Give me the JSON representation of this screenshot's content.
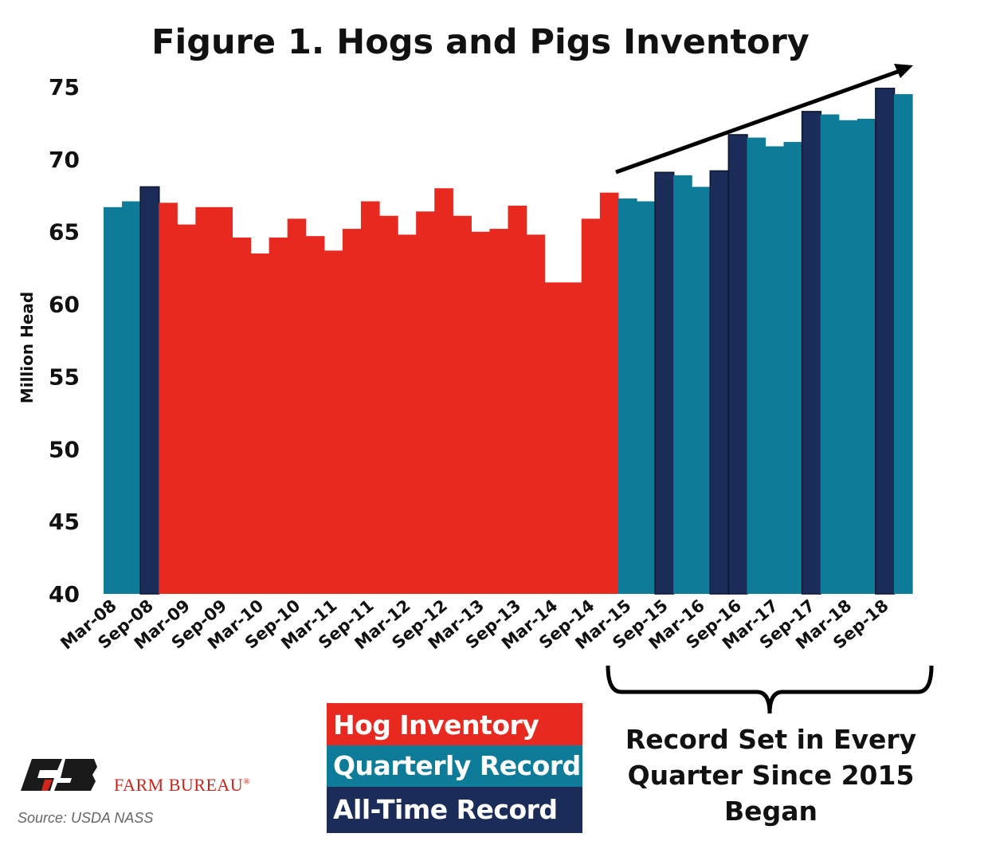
{
  "chart_data": {
    "type": "bar",
    "title": "Figure 1. Hogs and Pigs Inventory",
    "ylabel": "Million Head",
    "xlabel": "",
    "ylim": [
      40,
      75
    ],
    "y_ticks": [
      "40",
      "45",
      "50",
      "55",
      "60",
      "65",
      "70",
      "75"
    ],
    "x_tick_labels": [
      "Mar-08",
      "Sep-08",
      "Mar-09",
      "Sep-09",
      "Mar-10",
      "Sep-10",
      "Mar-11",
      "Sep-11",
      "Mar-12",
      "Sep-12",
      "Mar-13",
      "Sep-13",
      "Mar-14",
      "Sep-14",
      "Mar-15",
      "Sep-15",
      "Mar-16",
      "Sep-16",
      "Mar-17",
      "Sep-17",
      "Mar-18",
      "Sep-18"
    ],
    "values": [
      66.7,
      67.1,
      68.1,
      67.0,
      65.5,
      66.7,
      66.7,
      64.6,
      63.5,
      64.6,
      65.9,
      64.7,
      63.7,
      65.2,
      67.1,
      66.1,
      64.8,
      66.4,
      68.0,
      66.1,
      65.0,
      65.2,
      66.8,
      64.8,
      61.5,
      61.5,
      65.9,
      67.7,
      67.3,
      67.1,
      69.1,
      68.9,
      68.1,
      69.2,
      71.7,
      71.5,
      70.9,
      71.2,
      73.3,
      73.1,
      72.7,
      72.8,
      74.9,
      74.5
    ],
    "bar_types": [
      "quarterly",
      "quarterly",
      "alltime",
      "hog",
      "hog",
      "hog",
      "hog",
      "hog",
      "hog",
      "hog",
      "hog",
      "hog",
      "hog",
      "hog",
      "hog",
      "hog",
      "hog",
      "hog",
      "hog",
      "hog",
      "hog",
      "hog",
      "hog",
      "hog",
      "hog",
      "hog",
      "hog",
      "hog",
      "quarterly",
      "quarterly",
      "alltime",
      "quarterly",
      "quarterly",
      "alltime",
      "alltime",
      "quarterly",
      "quarterly",
      "quarterly",
      "alltime",
      "quarterly",
      "quarterly",
      "quarterly",
      "alltime",
      "quarterly"
    ],
    "legend": [
      {
        "key": "hog",
        "label": "Hog Inventory",
        "color": "#e8291f"
      },
      {
        "key": "quarterly",
        "label": "Quarterly Record",
        "color": "#0e7c98"
      },
      {
        "key": "alltime",
        "label": "All-Time Record",
        "color": "#1c2c58"
      }
    ],
    "legend_placement": "bottom-center",
    "grid": false,
    "annotation": [
      "Record Set in Every",
      "Quarter Since 2015",
      "Began"
    ]
  },
  "branding": {
    "logo_text": "FB",
    "name": "FARM BUREAU",
    "registered": "®"
  },
  "source": "Source: USDA NASS"
}
